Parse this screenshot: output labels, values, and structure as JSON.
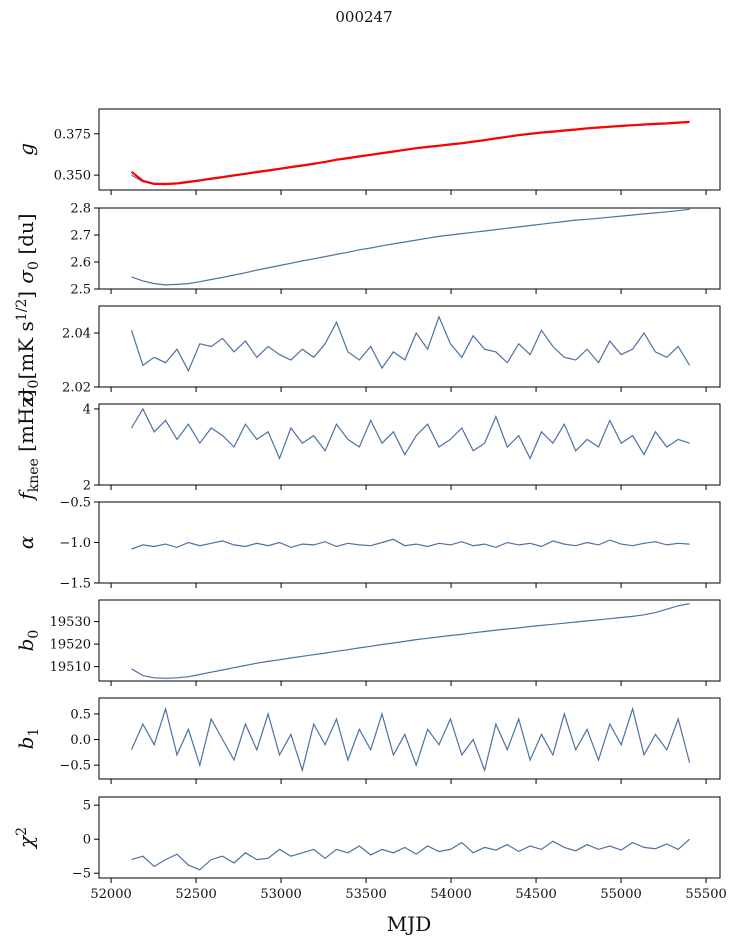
{
  "chart_data": {
    "type": "line",
    "title": "000247",
    "xlabel": "MJD",
    "xlim": [
      51929,
      55582
    ],
    "xticks": [
      52000,
      52500,
      53000,
      53500,
      54000,
      54500,
      55000,
      55500
    ],
    "xticklabels": [
      "52000",
      "52500",
      "53000",
      "53500",
      "54000",
      "54500",
      "55000",
      "55500"
    ],
    "x": [
      52120,
      52187,
      52254,
      52321,
      52388,
      52455,
      52522,
      52589,
      52656,
      52723,
      52790,
      52857,
      52924,
      52991,
      53058,
      53125,
      53192,
      53259,
      53326,
      53393,
      53460,
      53527,
      53594,
      53661,
      53728,
      53795,
      53862,
      53929,
      53996,
      54063,
      54130,
      54197,
      54264,
      54331,
      54398,
      54465,
      54532,
      54599,
      54666,
      54733,
      54800,
      54867,
      54934,
      55001,
      55068,
      55135,
      55202,
      55269,
      55336,
      55403
    ],
    "panels": [
      {
        "ylabel": {
          "base": "g",
          "sub": "",
          "sup": "",
          "unit": ""
        },
        "ylim": [
          0.341,
          0.39
        ],
        "yticks": [
          0.35,
          0.375
        ],
        "yticklabels": [
          "0.350",
          "0.375"
        ],
        "series": [
          {
            "name": "g",
            "color": "#4c72a4",
            "values": [
              0.35,
              0.346,
              0.3445,
              0.3443,
              0.3447,
              0.3455,
              0.3465,
              0.3475,
              0.3485,
              0.3495,
              0.3505,
              0.3515,
              0.3525,
              0.3535,
              0.3545,
              0.3555,
              0.3565,
              0.3578,
              0.359,
              0.36,
              0.361,
              0.362,
              0.363,
              0.364,
              0.365,
              0.366,
              0.3668,
              0.3675,
              0.3683,
              0.369,
              0.37,
              0.371,
              0.372,
              0.373,
              0.374,
              0.3748,
              0.3755,
              0.376,
              0.3767,
              0.3773,
              0.378,
              0.3785,
              0.379,
              0.3795,
              0.38,
              0.3803,
              0.3807,
              0.381,
              0.3815,
              0.382
            ]
          },
          {
            "name": "g_model",
            "color": "#ff0000",
            "values": [
              0.352,
              0.3465,
              0.3447,
              0.3446,
              0.345,
              0.3459,
              0.3468,
              0.3479,
              0.3488,
              0.3499,
              0.3508,
              0.3519,
              0.3528,
              0.3538,
              0.3549,
              0.3558,
              0.3569,
              0.358,
              0.3593,
              0.3603,
              0.3613,
              0.3623,
              0.3633,
              0.3643,
              0.3653,
              0.3663,
              0.3671,
              0.3678,
              0.3686,
              0.3693,
              0.3703,
              0.3712,
              0.3722,
              0.3732,
              0.3742,
              0.375,
              0.3758,
              0.3763,
              0.377,
              0.3776,
              0.3783,
              0.3788,
              0.3793,
              0.3798,
              0.3802,
              0.3806,
              0.381,
              0.3813,
              0.3818,
              0.3822
            ]
          }
        ]
      },
      {
        "ylabel": {
          "base": "σ",
          "sub": "0",
          "sup": "",
          "unit": " [du]"
        },
        "ylim": [
          2.5,
          2.8
        ],
        "yticks": [
          2.5,
          2.6,
          2.7,
          2.8
        ],
        "yticklabels": [
          "2.5",
          "2.6",
          "2.7",
          "2.8"
        ],
        "series": [
          {
            "name": "sigma0_du",
            "color": "#4c72a4",
            "values": [
              2.545,
              2.53,
              2.52,
              2.515,
              2.517,
              2.52,
              2.527,
              2.535,
              2.543,
              2.552,
              2.56,
              2.57,
              2.578,
              2.587,
              2.595,
              2.604,
              2.612,
              2.62,
              2.628,
              2.636,
              2.645,
              2.652,
              2.66,
              2.667,
              2.674,
              2.681,
              2.688,
              2.695,
              2.7,
              2.705,
              2.71,
              2.715,
              2.72,
              2.725,
              2.73,
              2.735,
              2.74,
              2.745,
              2.75,
              2.755,
              2.758,
              2.762,
              2.766,
              2.77,
              2.774,
              2.778,
              2.782,
              2.786,
              2.79,
              2.795
            ]
          }
        ]
      },
      {
        "ylabel": {
          "base": "σ",
          "sub": "0",
          "sup": "1/2",
          "unit": "[mK s"
        },
        "ylim": [
          2.02,
          2.05
        ],
        "yticks": [
          2.02,
          2.04
        ],
        "yticklabels": [
          "2.02",
          "2.04"
        ],
        "series": [
          {
            "name": "sigma0_mK",
            "color": "#4c72a4",
            "values": [
              2.041,
              2.028,
              2.031,
              2.029,
              2.034,
              2.026,
              2.036,
              2.035,
              2.038,
              2.033,
              2.037,
              2.031,
              2.035,
              2.032,
              2.03,
              2.034,
              2.031,
              2.036,
              2.044,
              2.033,
              2.03,
              2.035,
              2.027,
              2.033,
              2.03,
              2.04,
              2.034,
              2.046,
              2.036,
              2.031,
              2.039,
              2.034,
              2.033,
              2.029,
              2.036,
              2.032,
              2.041,
              2.035,
              2.031,
              2.03,
              2.034,
              2.029,
              2.037,
              2.032,
              2.034,
              2.04,
              2.033,
              2.031,
              2.035,
              2.028
            ]
          }
        ]
      },
      {
        "ylabel": {
          "base": "f",
          "sub": "knee",
          "sup": "",
          "unit": " [mHz]"
        },
        "ylim": [
          2,
          4.13
        ],
        "yticks": [
          2,
          4
        ],
        "yticklabels": [
          "2",
          "4"
        ],
        "series": [
          {
            "name": "fknee",
            "color": "#4c72a4",
            "values": [
              3.5,
              4.0,
              3.4,
              3.7,
              3.2,
              3.6,
              3.1,
              3.5,
              3.3,
              3.0,
              3.6,
              3.2,
              3.4,
              2.7,
              3.5,
              3.1,
              3.3,
              2.9,
              3.6,
              3.2,
              3.0,
              3.7,
              3.1,
              3.4,
              2.8,
              3.3,
              3.6,
              3.0,
              3.2,
              3.5,
              2.9,
              3.1,
              3.8,
              3.0,
              3.3,
              2.7,
              3.4,
              3.1,
              3.6,
              2.9,
              3.2,
              3.0,
              3.7,
              3.1,
              3.3,
              2.8,
              3.4,
              3.0,
              3.2,
              3.1
            ]
          }
        ]
      },
      {
        "ylabel": {
          "base": "α",
          "sub": "",
          "sup": "",
          "unit": ""
        },
        "ylim": [
          -1.5,
          -0.5
        ],
        "yticks": [
          -1.5,
          -1.0,
          -0.5
        ],
        "yticklabels": [
          "−1.5",
          "−1.0",
          "−0.5"
        ],
        "series": [
          {
            "name": "alpha",
            "color": "#4c72a4",
            "values": [
              -1.08,
              -1.03,
              -1.05,
              -1.02,
              -1.06,
              -1.0,
              -1.04,
              -1.01,
              -0.98,
              -1.03,
              -1.05,
              -1.01,
              -1.04,
              -1.0,
              -1.06,
              -1.02,
              -1.03,
              -0.99,
              -1.05,
              -1.01,
              -1.03,
              -1.04,
              -1.0,
              -0.96,
              -1.04,
              -1.02,
              -1.05,
              -1.01,
              -1.03,
              -0.99,
              -1.04,
              -1.02,
              -1.06,
              -1.0,
              -1.03,
              -1.01,
              -1.05,
              -0.98,
              -1.02,
              -1.04,
              -1.0,
              -1.03,
              -0.97,
              -1.02,
              -1.04,
              -1.01,
              -0.99,
              -1.03,
              -1.01,
              -1.02
            ]
          }
        ]
      },
      {
        "ylabel": {
          "base": "b",
          "sub": "0",
          "sup": "",
          "unit": ""
        },
        "ylim": [
          19503.6,
          19539.6
        ],
        "yticks": [
          19510,
          19520,
          19530
        ],
        "yticklabels": [
          "19510",
          "19520",
          "19530"
        ],
        "series": [
          {
            "name": "b0",
            "color": "#4c72a4",
            "values": [
              19509,
              19506,
              19505,
              19504.8,
              19505,
              19505.5,
              19506.5,
              19507.5,
              19508.5,
              19509.5,
              19510.5,
              19511.5,
              19512.3,
              19513,
              19513.8,
              19514.6,
              19515.3,
              19516,
              19516.8,
              19517.5,
              19518.3,
              19519,
              19519.8,
              19520.5,
              19521.2,
              19522,
              19522.6,
              19523.2,
              19523.8,
              19524.3,
              19525,
              19525.6,
              19526.2,
              19526.7,
              19527.2,
              19527.8,
              19528.3,
              19528.8,
              19529.3,
              19529.8,
              19530.3,
              19530.8,
              19531.3,
              19531.8,
              19532.3,
              19533,
              19534,
              19535.5,
              19537,
              19538
            ]
          }
        ]
      },
      {
        "ylabel": {
          "base": "b",
          "sub": "1",
          "sup": "",
          "unit": ""
        },
        "ylim": [
          -0.77,
          0.81
        ],
        "yticks": [
          -0.5,
          0,
          0.5
        ],
        "yticklabels": [
          "−0.5",
          "0.0",
          "0.5"
        ],
        "series": [
          {
            "name": "b1",
            "color": "#4c72a4",
            "values": [
              -0.2,
              0.3,
              -0.1,
              0.6,
              -0.3,
              0.2,
              -0.5,
              0.4,
              0.0,
              -0.4,
              0.3,
              -0.2,
              0.5,
              -0.3,
              0.1,
              -0.6,
              0.3,
              -0.1,
              0.4,
              -0.4,
              0.2,
              -0.2,
              0.5,
              -0.3,
              0.1,
              -0.5,
              0.2,
              -0.1,
              0.4,
              -0.3,
              0.0,
              -0.6,
              0.3,
              -0.2,
              0.4,
              -0.4,
              0.1,
              -0.3,
              0.5,
              -0.2,
              0.2,
              -0.4,
              0.3,
              -0.1,
              0.6,
              -0.3,
              0.1,
              -0.2,
              0.4,
              -0.45
            ]
          }
        ]
      },
      {
        "ylabel": {
          "base": "χ",
          "sub": "",
          "sup": "2",
          "unit": ""
        },
        "ylim": [
          -5.7,
          6.2
        ],
        "yticks": [
          -5,
          0,
          5
        ],
        "yticklabels": [
          "−5",
          "0",
          "5"
        ],
        "series": [
          {
            "name": "chi2",
            "color": "#4c72a4",
            "values": [
              -3,
              -2.5,
              -4,
              -3,
              -2.2,
              -3.8,
              -4.5,
              -3,
              -2.5,
              -3.5,
              -2,
              -3,
              -2.8,
              -1.5,
              -2.5,
              -2,
              -1.5,
              -2.8,
              -1.5,
              -2,
              -1,
              -2.3,
              -1.5,
              -2,
              -1.2,
              -2.2,
              -1,
              -1.8,
              -1.5,
              -0.5,
              -2,
              -1.2,
              -1.6,
              -0.8,
              -1.8,
              -1,
              -1.5,
              -0.3,
              -1.2,
              -1.7,
              -0.8,
              -1.5,
              -1,
              -1.6,
              -0.5,
              -1.2,
              -1.4,
              -0.7,
              -1.5,
              0
            ]
          }
        ]
      }
    ]
  }
}
